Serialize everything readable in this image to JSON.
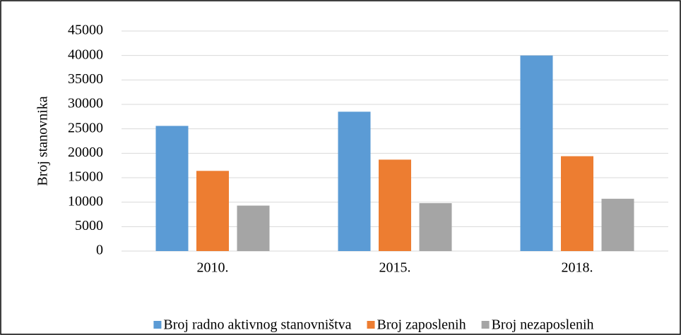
{
  "chart_data": {
    "type": "bar",
    "y_label": "Broj stanovnika",
    "categories": [
      "2010.",
      "2015.",
      "2018."
    ],
    "series": [
      {
        "name": "Broj radno aktivnog stanovništva",
        "color": "#5b9bd5",
        "values": [
          25600,
          28500,
          40000
        ]
      },
      {
        "name": "Broj zaposlenih",
        "color": "#ed7d31",
        "values": [
          16400,
          18700,
          19400
        ]
      },
      {
        "name": "Broj nezaposlenih",
        "color": "#a5a5a5",
        "values": [
          9300,
          9800,
          10700
        ]
      }
    ],
    "ylim": [
      0,
      45000
    ],
    "yticks": [
      0,
      5000,
      10000,
      15000,
      20000,
      25000,
      30000,
      35000,
      40000,
      45000
    ],
    "grid": true,
    "legend": "bottom"
  }
}
